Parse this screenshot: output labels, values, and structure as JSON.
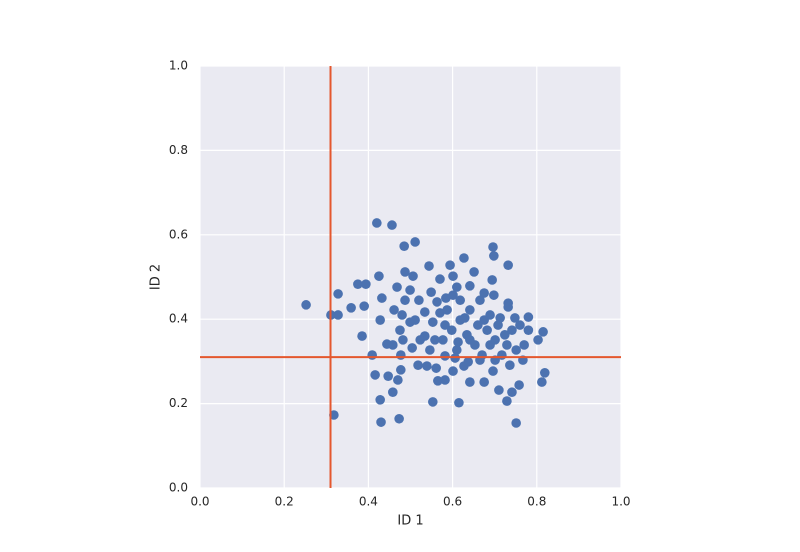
{
  "chart_data": {
    "type": "scatter",
    "x_label": "ID 1",
    "y_label": "ID 2",
    "xlim": [
      0,
      1
    ],
    "ylim": [
      0,
      1
    ],
    "xticks": [
      {
        "value": 0,
        "label": "0.0"
      },
      0.2,
      0.4,
      0.6,
      0.8,
      {
        "value": 1,
        "label": "1.0"
      }
    ],
    "yticks": [
      {
        "value": 0,
        "label": "0.0"
      },
      0.2,
      0.4,
      0.6,
      0.8,
      {
        "value": 1,
        "label": "1.0"
      }
    ],
    "grid": true,
    "color": "#4c72b0",
    "reference_lines": {
      "x": 0.31,
      "y": 0.31,
      "color": "#e4572e"
    },
    "x": [
      0.252,
      0.311,
      0.318,
      0.328,
      0.328,
      0.359,
      0.375,
      0.394,
      0.385,
      0.39,
      0.42,
      0.456,
      0.485,
      0.511,
      0.425,
      0.428,
      0.432,
      0.428,
      0.43,
      0.473,
      0.458,
      0.409,
      0.416,
      0.447,
      0.477,
      0.47,
      0.553,
      0.615,
      0.696,
      0.698,
      0.732,
      0.751,
      0.812,
      0.819,
      0.815,
      0.803,
      0.78,
      0.758,
      0.741,
      0.729,
      0.71,
      0.696,
      0.675,
      0.641,
      0.627,
      0.601,
      0.582,
      0.565,
      0.539,
      0.561,
      0.518,
      0.627,
      0.651,
      0.594,
      0.544,
      0.601,
      0.694,
      0.57,
      0.487,
      0.506,
      0.499,
      0.468,
      0.732,
      0.732,
      0.698,
      0.675,
      0.641,
      0.61,
      0.584,
      0.549,
      0.52,
      0.487,
      0.461,
      0.444,
      0.477,
      0.482,
      0.504,
      0.511,
      0.534,
      0.553,
      0.57,
      0.577,
      0.598,
      0.61,
      0.618,
      0.634,
      0.641,
      0.653,
      0.66,
      0.67,
      0.682,
      0.689,
      0.701,
      0.708,
      0.717,
      0.729,
      0.741,
      0.751,
      0.76,
      0.77,
      0.78,
      0.767,
      0.736,
      0.701,
      0.665,
      0.637,
      0.606,
      0.582,
      0.546,
      0.523,
      0.499,
      0.475,
      0.458,
      0.48,
      0.587,
      0.618,
      0.665,
      0.601,
      0.563,
      0.534,
      0.629,
      0.675,
      0.713,
      0.748,
      0.641,
      0.613,
      0.582,
      0.558,
      0.689,
      0.724
    ],
    "y": [
      0.434,
      0.41,
      0.173,
      0.46,
      0.41,
      0.427,
      0.483,
      0.483,
      0.36,
      0.431,
      0.628,
      0.623,
      0.573,
      0.583,
      0.502,
      0.398,
      0.45,
      0.209,
      0.156,
      0.164,
      0.227,
      0.315,
      0.268,
      0.265,
      0.28,
      0.256,
      0.204,
      0.202,
      0.571,
      0.55,
      0.528,
      0.154,
      0.251,
      0.273,
      0.37,
      0.351,
      0.405,
      0.244,
      0.227,
      0.206,
      0.232,
      0.277,
      0.251,
      0.251,
      0.289,
      0.277,
      0.256,
      0.254,
      0.289,
      0.284,
      0.291,
      0.545,
      0.512,
      0.528,
      0.526,
      0.502,
      0.493,
      0.495,
      0.512,
      0.502,
      0.469,
      0.476,
      0.429,
      0.438,
      0.457,
      0.462,
      0.479,
      0.476,
      0.45,
      0.464,
      0.445,
      0.445,
      0.422,
      0.341,
      0.315,
      0.351,
      0.332,
      0.398,
      0.36,
      0.393,
      0.415,
      0.351,
      0.374,
      0.327,
      0.398,
      0.363,
      0.422,
      0.339,
      0.386,
      0.315,
      0.374,
      0.41,
      0.351,
      0.386,
      0.315,
      0.339,
      0.374,
      0.327,
      0.386,
      0.339,
      0.374,
      0.303,
      0.291,
      0.303,
      0.303,
      0.299,
      0.308,
      0.313,
      0.327,
      0.351,
      0.393,
      0.374,
      0.339,
      0.41,
      0.422,
      0.445,
      0.445,
      0.457,
      0.441,
      0.417,
      0.403,
      0.398,
      0.403,
      0.403,
      0.351,
      0.346,
      0.386,
      0.351,
      0.339,
      0.363
    ]
  }
}
